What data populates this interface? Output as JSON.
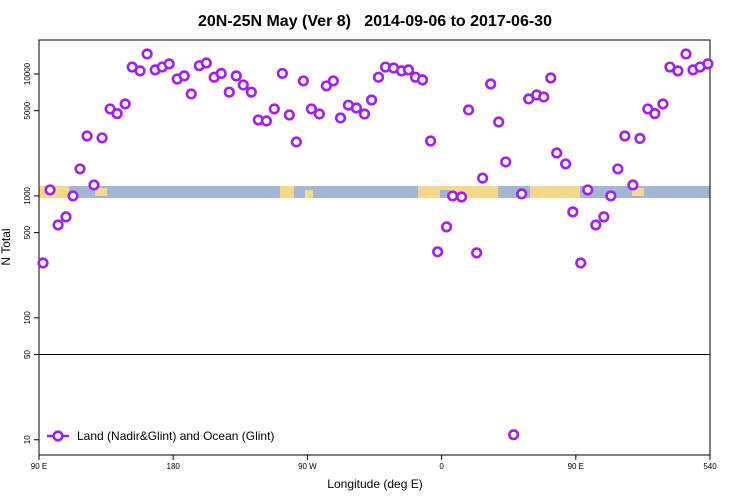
{
  "chart_data": {
    "type": "scatter",
    "title": "20N-25N May (Ver 8)   2014-09-06 to 2017-06-30",
    "x_label": "Longitude (deg E)",
    "y_label": "N Total",
    "xlim": [
      90,
      540
    ],
    "xticks": [
      {
        "value": 90,
        "label": "90 E"
      },
      180,
      {
        "value": 270,
        "label": "90 W"
      },
      {
        "value": 360,
        "label": "0"
      },
      {
        "value": 450,
        "label": "90 E"
      },
      540
    ],
    "ylim": [
      7.5,
      19000
    ],
    "yticks": [
      10,
      50,
      100,
      500,
      1000,
      5000,
      10000
    ],
    "log_scale": true,
    "hline": 50,
    "legend_location": "bottom-left",
    "series": [
      {
        "name": "Land (Nadir&Glint) and Ocean (Glint)",
        "color": "#a020f0",
        "x": [
          92.7,
          97.4,
          102.8,
          108.1,
          112.8,
          117.5,
          122.2,
          126.9,
          132.3,
          137.7,
          142.4,
          147.8,
          152.5,
          157.8,
          162.5,
          167.9,
          172.6,
          177.3,
          182.7,
          187.4,
          192.1,
          197.5,
          202.2,
          207.5,
          212.2,
          217.6,
          222.3,
          227.0,
          232.4,
          237.1,
          242.5,
          247.8,
          253.2,
          257.9,
          262.6,
          267.3,
          272.7,
          278.0,
          282.7,
          287.4,
          292.2,
          297.5,
          302.9,
          308.3,
          313.0,
          317.7,
          322.4,
          327.8,
          333.1,
          337.8,
          342.5,
          347.2,
          352.6,
          357.3,
          363.3,
          367.4,
          373.4,
          378.1,
          383.5,
          387.5,
          392.9,
          398.3,
          403.0,
          408.3,
          413.7,
          418.4,
          423.8,
          428.5,
          433.2,
          437.2,
          443.2,
          448.0,
          453.3,
          458.0,
          463.4,
          468.8,
          473.5,
          478.2,
          482.9,
          488.3,
          493.0,
          498.3,
          503.0,
          508.4,
          513.1,
          518.5,
          523.9,
          528.6,
          533.3,
          538.6
        ],
        "values": [
          282,
          1120,
          578,
          673,
          1000,
          1665,
          3100,
          1230,
          2990,
          5170,
          4730,
          5680,
          11400,
          10600,
          14600,
          10800,
          11400,
          12100,
          9100,
          9650,
          6860,
          11700,
          12300,
          9400,
          10100,
          7100,
          9650,
          8130,
          7100,
          4200,
          4120,
          5170,
          10100,
          4610,
          2770,
          8770,
          5170,
          4700,
          7980,
          8770,
          4360,
          5550,
          5260,
          4700,
          6120,
          9400,
          11400,
          11200,
          10600,
          10800,
          9400,
          8950,
          2820,
          348,
          557,
          1000,
          980,
          5070,
          341,
          1400,
          8280,
          4040,
          1900,
          11,
          1040,
          6240,
          6730,
          6480,
          9270,
          2250,
          1830,
          740,
          282,
          1120,
          578,
          673,
          1000,
          1665,
          3100,
          1230,
          2960,
          5170,
          4730,
          5680,
          11400,
          10600,
          14600,
          10800,
          11400,
          12100
        ]
      }
    ]
  }
}
